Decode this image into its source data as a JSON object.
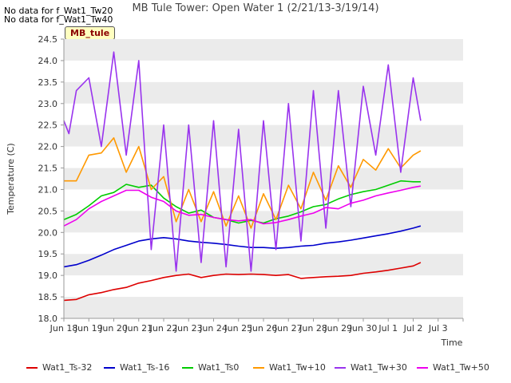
{
  "no_data_notes": [
    "No data for f_Wat1_Tw20",
    "No data for f_Wat1_Tw40"
  ],
  "site_badge": "MB_tule",
  "chart_data": {
    "type": "line",
    "title": "MB Tule Tower: Open Water 1 (2/21/13-3/19/14)",
    "xlabel": "Time",
    "ylabel": "Temperature (C)",
    "xlim": [
      0,
      16
    ],
    "ylim": [
      18.0,
      24.5
    ],
    "xticks": [
      0,
      1,
      2,
      3,
      4,
      5,
      6,
      7,
      8,
      9,
      10,
      11,
      12,
      13,
      14,
      15,
      16
    ],
    "xtick_labels": [
      "Jun 18",
      "Jun 19",
      "Jun 20",
      "Jun 21",
      "Jun 22",
      "Jun 23",
      "Jun 24",
      "Jun 25",
      "Jun 26",
      "Jun 27",
      "Jun 28",
      "Jun 29",
      "Jun 30",
      "Jul 1",
      "Jul 2",
      "Jul 3",
      ""
    ],
    "yticks": [
      18.0,
      18.5,
      19.0,
      19.5,
      20.0,
      20.5,
      21.0,
      21.5,
      22.0,
      22.5,
      23.0,
      23.5,
      24.0,
      24.5
    ],
    "ytick_labels": [
      "18.0",
      "18.5",
      "19.0",
      "19.5",
      "20.0",
      "20.5",
      "21.0",
      "21.5",
      "22.0",
      "22.5",
      "23.0",
      "23.5",
      "24.0",
      "24.5"
    ],
    "grid": "horizontal bands",
    "legend_position": "bottom",
    "series": [
      {
        "name": "Wat1_Ts-32",
        "color": "#dd0000",
        "x": [
          0,
          0.5,
          1,
          1.5,
          2,
          2.5,
          3,
          3.5,
          4,
          4.5,
          5,
          5.5,
          6,
          6.5,
          7,
          7.5,
          8,
          8.5,
          9,
          9.5,
          10,
          10.5,
          11,
          11.5,
          12,
          12.5,
          13,
          13.5,
          14,
          14.3
        ],
        "y": [
          18.42,
          18.44,
          18.55,
          18.6,
          18.67,
          18.72,
          18.82,
          18.88,
          18.95,
          19.0,
          19.03,
          18.95,
          19.0,
          19.03,
          19.02,
          19.03,
          19.02,
          19.0,
          19.02,
          18.93,
          18.95,
          18.97,
          18.98,
          19.0,
          19.05,
          19.08,
          19.12,
          19.17,
          19.22,
          19.3
        ]
      },
      {
        "name": "Wat1_Ts-16",
        "color": "#0000cc",
        "x": [
          0,
          0.5,
          1,
          1.5,
          2,
          2.5,
          3,
          3.5,
          4,
          4.5,
          5,
          5.5,
          6,
          6.5,
          7,
          7.5,
          8,
          8.5,
          9,
          9.5,
          10,
          10.5,
          11,
          11.5,
          12,
          12.5,
          13,
          13.5,
          14,
          14.3
        ],
        "y": [
          19.2,
          19.25,
          19.35,
          19.47,
          19.6,
          19.7,
          19.8,
          19.85,
          19.88,
          19.85,
          19.8,
          19.77,
          19.75,
          19.72,
          19.68,
          19.65,
          19.65,
          19.63,
          19.65,
          19.68,
          19.7,
          19.75,
          19.78,
          19.82,
          19.87,
          19.92,
          19.97,
          20.03,
          20.1,
          20.15
        ]
      },
      {
        "name": "Wat1_Ts0",
        "color": "#00cc00",
        "x": [
          0,
          0.5,
          1,
          1.5,
          2,
          2.5,
          3,
          3.5,
          4,
          4.5,
          5,
          5.5,
          6,
          6.5,
          7,
          7.5,
          8,
          8.5,
          9,
          9.5,
          10,
          10.5,
          11,
          11.5,
          12,
          12.5,
          13,
          13.5,
          14,
          14.3
        ],
        "y": [
          20.3,
          20.42,
          20.62,
          20.85,
          20.93,
          21.12,
          21.05,
          21.1,
          20.8,
          20.6,
          20.45,
          20.52,
          20.35,
          20.3,
          20.22,
          20.28,
          20.22,
          20.32,
          20.38,
          20.48,
          20.6,
          20.65,
          20.78,
          20.88,
          20.95,
          21.0,
          21.1,
          21.2,
          21.18,
          21.18
        ]
      },
      {
        "name": "Wat1_Tw+10",
        "color": "#ff9900",
        "x": [
          0,
          0.5,
          1,
          1.5,
          2,
          2.5,
          3,
          3.5,
          4,
          4.5,
          5,
          5.5,
          6,
          6.5,
          7,
          7.5,
          8,
          8.5,
          9,
          9.5,
          10,
          10.5,
          11,
          11.5,
          12,
          12.5,
          13,
          13.5,
          14,
          14.3
        ],
        "y": [
          21.2,
          21.2,
          21.8,
          21.85,
          22.2,
          21.4,
          22.0,
          21.0,
          21.3,
          20.25,
          21.0,
          20.25,
          20.95,
          20.15,
          20.85,
          20.1,
          20.9,
          20.3,
          21.1,
          20.55,
          21.4,
          20.75,
          21.55,
          21.05,
          21.7,
          21.45,
          21.95,
          21.5,
          21.8,
          21.9
        ]
      },
      {
        "name": "Wat1_Tw+30",
        "color": "#9933ee",
        "x": [
          0,
          0.2,
          0.5,
          1,
          1.5,
          2,
          2.5,
          3,
          3.5,
          4,
          4.5,
          5,
          5.5,
          6,
          6.5,
          7,
          7.5,
          8,
          8.5,
          9,
          9.5,
          10,
          10.5,
          11,
          11.5,
          12,
          12.5,
          13,
          13.5,
          14,
          14.3
        ],
        "y": [
          22.6,
          22.3,
          23.3,
          23.6,
          22.0,
          24.2,
          21.8,
          24.0,
          19.6,
          22.5,
          19.1,
          22.5,
          19.3,
          22.6,
          19.2,
          22.4,
          19.1,
          22.6,
          19.6,
          23.0,
          19.8,
          23.3,
          20.1,
          23.3,
          20.6,
          23.4,
          21.8,
          23.9,
          21.4,
          23.6,
          22.6
        ]
      },
      {
        "name": "Wat1_Tw+50",
        "color": "#ee00ee",
        "x": [
          0,
          0.5,
          1,
          1.5,
          2,
          2.5,
          3,
          3.5,
          4,
          4.5,
          5,
          5.5,
          6,
          6.5,
          7,
          7.5,
          8,
          8.5,
          9,
          9.5,
          10,
          10.5,
          11,
          11.5,
          12,
          12.5,
          13,
          13.5,
          14,
          14.3
        ],
        "y": [
          20.15,
          20.3,
          20.55,
          20.72,
          20.85,
          20.98,
          20.98,
          20.82,
          20.72,
          20.5,
          20.4,
          20.42,
          20.35,
          20.3,
          20.27,
          20.3,
          20.2,
          20.23,
          20.3,
          20.38,
          20.45,
          20.58,
          20.55,
          20.68,
          20.75,
          20.85,
          20.92,
          20.98,
          21.05,
          21.08
        ]
      }
    ]
  }
}
